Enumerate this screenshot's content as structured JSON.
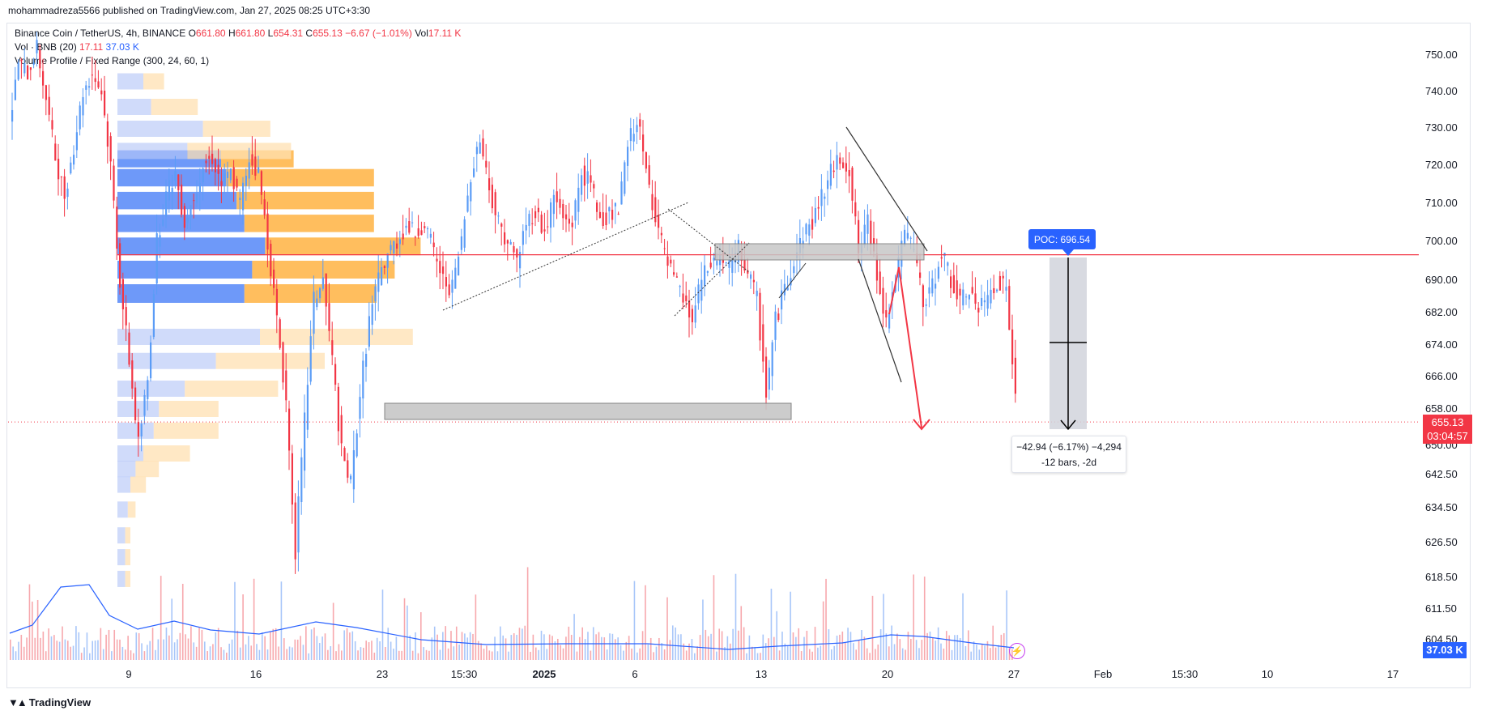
{
  "header": {
    "published": "mohammadreza5566 published on TradingView.com, Jan 27, 2025 08:25 UTC+3:30"
  },
  "legend": {
    "symbol": "Binance Coin / TetherUS, 4h, BINANCE",
    "o_label": "O",
    "o": "661.80",
    "h_label": "H",
    "h": "661.80",
    "l_label": "L",
    "l": "654.31",
    "c_label": "C",
    "c": "655.13",
    "chg": "−6.67 (−1.01%)",
    "vol_label": "Vol",
    "vol": "17.11 K",
    "vol_ind_label": "Vol · BNB (20)",
    "vol_ind_v1": "17.11",
    "vol_ind_v2": "37.03 K",
    "vp_label": "Volume Profile / Fixed Range (300, 24, 60, 1)"
  },
  "price_tag": {
    "price": "655.13",
    "countdown": "03:04:57"
  },
  "volume_tag": "37.03 K",
  "poc_label": "POC: 696.54",
  "measure": {
    "line1": "−42.94 (−6.17%) −4,294",
    "line2": "-12 bars, -2d"
  },
  "brand": "TradingView",
  "colors": {
    "up": "#5b9cf6",
    "down": "#f23645",
    "vp_up": "#5e8ef8",
    "vp_down": "#ffb74d",
    "poc": "#f23645"
  },
  "chart_data": {
    "type": "candlestick",
    "symbol": "BNB/USDT",
    "interval": "4h",
    "y_ticks": [
      750,
      740,
      730,
      720,
      710,
      700,
      690,
      682,
      674,
      666,
      658,
      650,
      642.5,
      634.5,
      626.5,
      618.5,
      611.5,
      604.5
    ],
    "y_tick_labels": [
      "750.00",
      "740.00",
      "730.00",
      "720.00",
      "710.00",
      "700.00",
      "690.00",
      "682.00",
      "674.00",
      "666.00",
      "658.00",
      "650.00",
      "642.50",
      "634.50",
      "626.50",
      "618.50",
      "611.50",
      "604.50"
    ],
    "x_ticks": [
      "9",
      "16",
      "23",
      "15:30",
      "2025",
      "6",
      "13",
      "20",
      "27",
      "Feb",
      "15:30",
      "10",
      "17"
    ],
    "poc": 696.54,
    "last_price": 655.13,
    "price_path": [
      [
        0,
        730
      ],
      [
        3,
        748
      ],
      [
        6,
        745
      ],
      [
        9,
        752
      ],
      [
        12,
        738
      ],
      [
        15,
        722
      ],
      [
        18,
        712
      ],
      [
        21,
        725
      ],
      [
        24,
        740
      ],
      [
        27,
        745
      ],
      [
        30,
        740
      ],
      [
        33,
        720
      ],
      [
        36,
        690
      ],
      [
        39,
        670
      ],
      [
        42,
        650
      ],
      [
        45,
        665
      ],
      [
        48,
        700
      ],
      [
        51,
        712
      ],
      [
        54,
        718
      ],
      [
        57,
        705
      ],
      [
        60,
        712
      ],
      [
        63,
        720
      ],
      [
        66,
        722
      ],
      [
        69,
        715
      ],
      [
        72,
        718
      ],
      [
        75,
        710
      ],
      [
        78,
        722
      ],
      [
        81,
        718
      ],
      [
        84,
        700
      ],
      [
        87,
        680
      ],
      [
        90,
        660
      ],
      [
        93,
        625
      ],
      [
        96,
        655
      ],
      [
        99,
        685
      ],
      [
        102,
        690
      ],
      [
        105,
        670
      ],
      [
        108,
        648
      ],
      [
        111,
        640
      ],
      [
        114,
        662
      ],
      [
        117,
        680
      ],
      [
        120,
        690
      ],
      [
        123,
        697
      ],
      [
        126,
        700
      ],
      [
        129,
        704
      ],
      [
        132,
        702
      ],
      [
        135,
        705
      ],
      [
        138,
        697
      ],
      [
        141,
        690
      ],
      [
        144,
        688
      ],
      [
        147,
        700
      ],
      [
        150,
        718
      ],
      [
        153,
        727
      ],
      [
        156,
        714
      ],
      [
        159,
        705
      ],
      [
        162,
        700
      ],
      [
        165,
        695
      ],
      [
        168,
        705
      ],
      [
        171,
        708
      ],
      [
        174,
        702
      ],
      [
        177,
        712
      ],
      [
        180,
        706
      ],
      [
        183,
        705
      ],
      [
        186,
        718
      ],
      [
        189,
        715
      ],
      [
        192,
        706
      ],
      [
        195,
        707
      ],
      [
        198,
        708
      ],
      [
        201,
        725
      ],
      [
        204,
        733
      ],
      [
        207,
        718
      ],
      [
        210,
        707
      ],
      [
        213,
        696
      ],
      [
        216,
        690
      ],
      [
        219,
        685
      ],
      [
        222,
        680
      ],
      [
        225,
        690
      ],
      [
        228,
        694
      ],
      [
        231,
        696
      ],
      [
        234,
        693
      ],
      [
        237,
        698
      ],
      [
        240,
        692
      ],
      [
        243,
        685
      ],
      [
        246,
        662
      ],
      [
        249,
        680
      ],
      [
        252,
        688
      ],
      [
        255,
        695
      ],
      [
        258,
        702
      ],
      [
        261,
        705
      ],
      [
        264,
        712
      ],
      [
        267,
        718
      ],
      [
        270,
        722
      ],
      [
        273,
        719
      ],
      [
        276,
        697
      ],
      [
        279,
        705
      ],
      [
        282,
        692
      ],
      [
        285,
        680
      ],
      [
        288,
        690
      ],
      [
        291,
        702
      ],
      [
        294,
        698
      ],
      [
        297,
        684
      ],
      [
        300,
        688
      ],
      [
        303,
        698
      ],
      [
        306,
        690
      ],
      [
        309,
        684
      ],
      [
        312,
        688
      ],
      [
        315,
        682
      ],
      [
        318,
        686
      ],
      [
        321,
        690
      ],
      [
        324,
        688
      ],
      [
        327,
        660
      ],
      [
        328,
        655
      ]
    ],
    "volume_profile": [
      {
        "price_low": 719,
        "price_high": 724,
        "up": 0.4,
        "down": 0.28
      },
      {
        "price_low": 714,
        "price_high": 719,
        "up": 0.42,
        "down": 0.57
      },
      {
        "price_low": 708,
        "price_high": 713,
        "up": 0.46,
        "down": 0.53
      },
      {
        "price_low": 702,
        "price_high": 707,
        "up": 0.49,
        "down": 0.5
      },
      {
        "price_low": 696,
        "price_high": 701,
        "up": 0.57,
        "down": 0.6
      },
      {
        "price_low": 690,
        "price_high": 695,
        "up": 0.52,
        "down": 0.55
      },
      {
        "price_low": 684,
        "price_high": 689,
        "up": 0.49,
        "down": 0.51
      }
    ],
    "volume": {
      "last": 17.11,
      "ma20": 37.03,
      "unit": "K"
    },
    "measure": {
      "change": -42.94,
      "percent": -6.17,
      "bars": -12
    }
  }
}
